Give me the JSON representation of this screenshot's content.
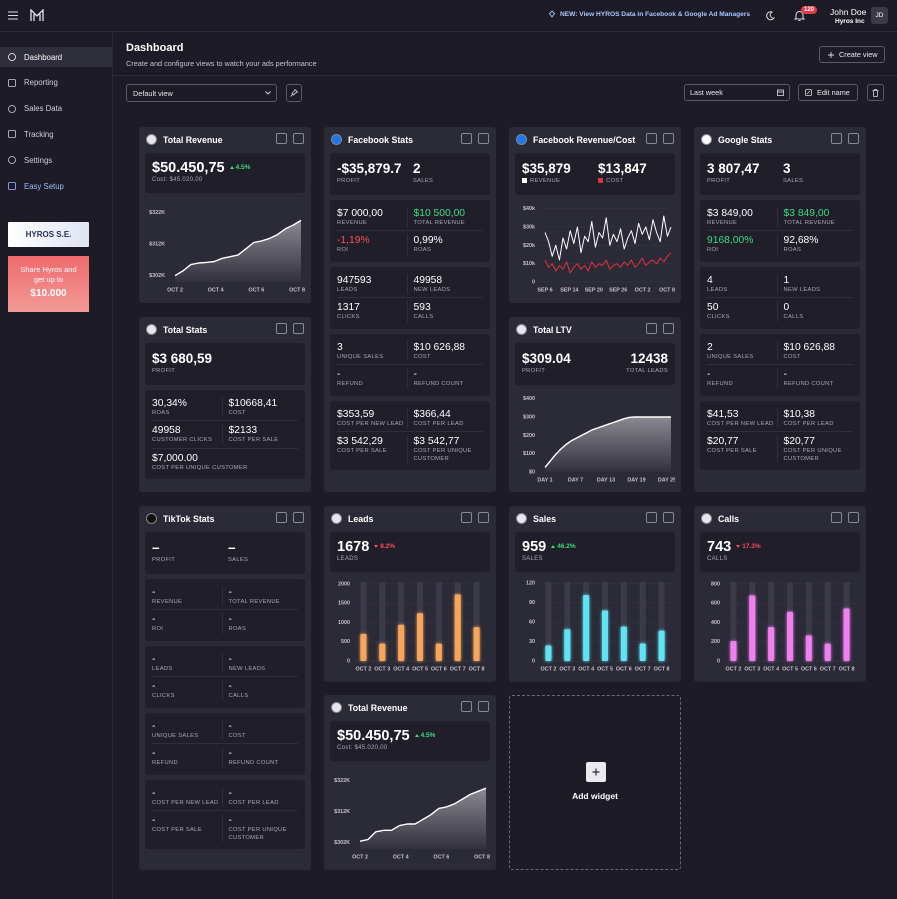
{
  "topbar": {
    "announcement": "NEW: View HYROS Data in Facebook & Google Ad Managers",
    "notifications": 120,
    "user_name": "John Doe",
    "company": "Hyros Inc",
    "initials": "JD"
  },
  "sidebar": {
    "items": [
      "Dashboard",
      "Reporting",
      "Sales Data",
      "Tracking",
      "Settings",
      "Easy Setup"
    ],
    "active": 0,
    "highlighted": 5,
    "highlight_color": "#9bbcff",
    "promo_title": "HYROS S.E.",
    "referral_text": "Share Hyros and get up to",
    "referral_amount": "$10.000"
  },
  "header": {
    "title": "Dashboard",
    "subtitle": "Create and configure views to watch your ads performance",
    "create_button": "Create view"
  },
  "toolbar": {
    "view": "Default view",
    "period": "Last week",
    "edit_button": "Edit name"
  },
  "widgets": [
    {
      "title": "Total Revenue",
      "summary": {
        "value": "$50.450,75",
        "change": "4.5%",
        "direction": "up",
        "note": "Cost: $45.020,00"
      },
      "chart": {
        "type": "area",
        "color": "#ffffff",
        "grid": false,
        "ylim": [
          300,
          325
        ],
        "yticks": [
          {
            "value": 322,
            "label": "$322K"
          },
          {
            "value": 312,
            "label": "$312K"
          },
          {
            "value": 302,
            "label": "$302K"
          }
        ],
        "xticks": [
          "OCT 2",
          "OCT 4",
          "OCT 6",
          "OCT 8"
        ],
        "series": [
          {
            "color": "#ffffff",
            "values": [
              302,
              303.5,
              305.5,
              306,
              306.2,
              306.5,
              307.5,
              308,
              308.5,
              310.5,
              312.5,
              313,
              313.8,
              315,
              316.8,
              318,
              319.5
            ]
          }
        ]
      }
    },
    {
      "title": "Facebook Stats",
      "blocks": [
        [
          [
            {
              "value": "-$35,879.7",
              "label": "PROFIT"
            },
            {
              "value": "2",
              "label": "SALES"
            }
          ]
        ],
        [
          [
            {
              "value": "$7 000,00",
              "label": "REVENUE"
            },
            {
              "value": "$10 500,00",
              "label": "TOTAL REVENUE",
              "color": "#3ddc84"
            }
          ],
          [
            {
              "value": "-1,19%",
              "label": "ROI",
              "color": "#ff4d5a"
            },
            {
              "value": "0,99%",
              "label": "ROAS"
            }
          ]
        ],
        [
          [
            {
              "value": "947593",
              "label": "LEADS"
            },
            {
              "value": "49958",
              "label": "NEW LEADS"
            }
          ],
          [
            {
              "value": "1317",
              "label": "CLICKS"
            },
            {
              "value": "593",
              "label": "CALLS"
            }
          ]
        ],
        [
          [
            {
              "value": "3",
              "label": "UNIQUE SALES"
            },
            {
              "value": "$10 626,88",
              "label": "COST"
            }
          ],
          [
            {
              "value": "-",
              "label": "REFUND"
            },
            {
              "value": "-",
              "label": "REFUND COUNT"
            }
          ]
        ],
        [
          [
            {
              "value": "$353,59",
              "label": "COST PER NEW LEAD"
            },
            {
              "value": "$366,44",
              "label": "COST PER LEAD"
            }
          ],
          [
            {
              "value": "$3 542,29",
              "label": "COST PER SALE"
            },
            {
              "value": "$3 542,77",
              "label": "COST PER UNIQUE CUSTOMER"
            }
          ]
        ]
      ]
    },
    {
      "title": "Facebook Revenue/Cost",
      "blocks": [
        [
          [
            {
              "value": "$35,879",
              "label": "REVENUE",
              "swatch": "#ffffff"
            },
            {
              "value": "$13,847",
              "label": "COST",
              "swatch": "#e0323c"
            }
          ]
        ]
      ],
      "chart": {
        "type": "line",
        "grid": true,
        "ylim": [
          0,
          42
        ],
        "yticks": [
          {
            "value": 40,
            "label": "$40k"
          },
          {
            "value": 30,
            "label": "$30k"
          },
          {
            "value": 20,
            "label": "$20k"
          },
          {
            "value": 10,
            "label": "$10k"
          },
          0
        ],
        "xticks": [
          "SEP 6",
          "SEP 14",
          "SEP 20",
          "SEP 26",
          "OCT 2",
          "OCT 8"
        ],
        "series": [
          {
            "color": "#ffffff",
            "values": [
              27,
              22,
              14,
              20,
              12,
              24,
              18,
              28,
              21,
              30,
              16,
              25,
              22,
              33,
              19,
              27,
              24,
              35,
              20,
              26,
              22,
              29,
              18,
              24,
              28,
              21,
              32,
              26,
              30,
              23,
              34,
              27,
              22,
              36,
              25,
              30
            ]
          },
          {
            "color": "#e0323c",
            "values": [
              12,
              8,
              10,
              6,
              9,
              7,
              11,
              5,
              8,
              10,
              7,
              9,
              6,
              11,
              8,
              10,
              9,
              12,
              7,
              9,
              10,
              8,
              11,
              9,
              12,
              8,
              10,
              13,
              9,
              11,
              12,
              10,
              13,
              11,
              14,
              16
            ]
          }
        ]
      }
    },
    {
      "title": "Google Stats",
      "blocks": [
        [
          [
            {
              "value": "3 807,47",
              "label": "PROFIT"
            },
            {
              "value": "3",
              "label": "SALES"
            }
          ]
        ],
        [
          [
            {
              "value": "$3 849,00",
              "label": "REVENUE"
            },
            {
              "value": "$3 849,00",
              "label": "TOTAL REVENUE",
              "color": "#3ddc84"
            }
          ],
          [
            {
              "value": "9168,00%",
              "label": "ROI",
              "color": "#3ddc84"
            },
            {
              "value": "92,68%",
              "label": "ROAS"
            }
          ]
        ],
        [
          [
            {
              "value": "4",
              "label": "LEADS"
            },
            {
              "value": "1",
              "label": "NEW LEADS"
            }
          ],
          [
            {
              "value": "50",
              "label": "CLICKS"
            },
            {
              "value": "0",
              "label": "CALLS"
            }
          ]
        ],
        [
          [
            {
              "value": "2",
              "label": "UNIQUE SALES"
            },
            {
              "value": "$10 626,88",
              "label": "COST"
            }
          ],
          [
            {
              "value": "-",
              "label": "REFUND"
            },
            {
              "value": "-",
              "label": "REFUND COUNT"
            }
          ]
        ],
        [
          [
            {
              "value": "$41,53",
              "label": "COST PER NEW LEAD"
            },
            {
              "value": "$10,38",
              "label": "COST PER LEAD"
            }
          ],
          [
            {
              "value": "$20,77",
              "label": "COST PER SALE"
            },
            {
              "value": "$20,77",
              "label": "COST PER UNIQUE CUSTOMER"
            }
          ]
        ]
      ]
    },
    {
      "title": "Total Stats",
      "blocks": [
        [
          [
            {
              "value": "$3 680,59",
              "label": "PROFIT"
            }
          ]
        ],
        [
          [
            {
              "value": "30,34%",
              "label": "ROAS"
            },
            {
              "value": "$10668,41",
              "label": "COST"
            }
          ],
          [
            {
              "value": "49958",
              "label": "CUSTOMER CLICKS"
            },
            {
              "value": "$2133",
              "label": "COST PER SALE"
            }
          ],
          [
            {
              "value": "$7,000.00",
              "label": "COST PER UNIQUE CUSTOMER"
            }
          ]
        ]
      ]
    },
    {
      "title": "Total LTV",
      "blocks": [
        [
          [
            {
              "value": "$309.04",
              "label": "PROFIT"
            },
            {
              "value": "12438",
              "label": "TOTAL LEADS",
              "align": "right"
            }
          ]
        ]
      ],
      "chart": {
        "type": "area",
        "color": "#ffffff",
        "grid": false,
        "ylim": [
          0,
          420
        ],
        "yticks": [
          {
            "value": 400,
            "label": "$400"
          },
          {
            "value": 300,
            "label": "$300"
          },
          {
            "value": 200,
            "label": "$200"
          },
          {
            "value": 100,
            "label": "$100"
          },
          {
            "value": 0,
            "label": "$0"
          }
        ],
        "xticks": [
          "DAY 1",
          "DAY 7",
          "DAY 13",
          "DAY 19",
          "DAY 25"
        ],
        "series": [
          {
            "color": "#ffffff",
            "values": [
              25,
              60,
              95,
              125,
              150,
              170,
              185,
              200,
              215,
              230,
              240,
              250,
              260,
              270,
              280,
              290,
              298,
              300,
              300,
              300,
              300,
              300,
              300,
              300,
              300
            ]
          }
        ]
      }
    },
    {
      "title": "TikTok Stats",
      "blocks": [
        [
          [
            {
              "value": "–",
              "label": "PROFIT"
            },
            {
              "value": "–",
              "label": "SALES"
            }
          ]
        ],
        [
          [
            {
              "value": "-",
              "label": "REVENUE"
            },
            {
              "value": "-",
              "label": "TOTAL REVENUE"
            }
          ],
          [
            {
              "value": "-",
              "label": "ROI"
            },
            {
              "value": "-",
              "label": "ROAS"
            }
          ]
        ],
        [
          [
            {
              "value": "-",
              "label": "LEADS"
            },
            {
              "value": "-",
              "label": "NEW LEADS"
            }
          ],
          [
            {
              "value": "-",
              "label": "CLICKS"
            },
            {
              "value": "-",
              "label": "CALLS"
            }
          ]
        ],
        [
          [
            {
              "value": "-",
              "label": "UNIQUE SALES"
            },
            {
              "value": "-",
              "label": "COST"
            }
          ],
          [
            {
              "value": "-",
              "label": "REFUND"
            },
            {
              "value": "-",
              "label": "REFUND COUNT"
            }
          ]
        ],
        [
          [
            {
              "value": "-",
              "label": "COST PER NEW LEAD"
            },
            {
              "value": "-",
              "label": "COST PER LEAD"
            }
          ],
          [
            {
              "value": "-",
              "label": "COST PER SALE"
            },
            {
              "value": "-",
              "label": "COST PER UNIQUE CUSTOMER"
            }
          ]
        ]
      ]
    },
    {
      "title": "Leads",
      "summary": {
        "value": "1678",
        "change": "8.2%",
        "direction": "down",
        "note": "LEADS"
      },
      "chart": {
        "type": "bar",
        "color": "#f6a55a",
        "grid": true,
        "ylim": [
          0,
          2050
        ],
        "yticks": [
          2000,
          1500,
          1000,
          500,
          0
        ],
        "xticks": [
          "OCT 2",
          "OCT 3",
          "OCT 4",
          "OCT 5",
          "OCT 6",
          "OCT 7",
          "OCT 8"
        ],
        "series": [
          {
            "color": "#f6a55a",
            "values": [
              700,
              450,
              940,
              1240,
              450,
              1730,
              880
            ]
          }
        ]
      }
    },
    {
      "title": "Sales",
      "summary": {
        "value": "959",
        "change": "46.2%",
        "direction": "up",
        "note": "SALES"
      },
      "chart": {
        "type": "bar",
        "color": "#5ee3f5",
        "grid": true,
        "ylim": [
          0,
          122
        ],
        "yticks": [
          120,
          90,
          60,
          30,
          0
        ],
        "xticks": [
          "OCT 2",
          "OCT 3",
          "OCT 4",
          "OCT 5",
          "OCT 6",
          "OCT 7",
          "OCT 8"
        ],
        "series": [
          {
            "color": "#5ee3f5",
            "values": [
              24,
              49,
              102,
              78,
              53,
              27,
              47
            ]
          }
        ]
      }
    },
    {
      "title": "Calls",
      "summary": {
        "value": "743",
        "change": "17.3%",
        "direction": "down",
        "note": "CALLS"
      },
      "chart": {
        "type": "bar",
        "color": "#f07ff0",
        "grid": true,
        "ylim": [
          0,
          820
        ],
        "yticks": [
          800,
          600,
          400,
          200,
          0
        ],
        "xticks": [
          "OCT 2",
          "OCT 3",
          "OCT 4",
          "OCT 5",
          "OCT 6",
          "OCT 7",
          "OCT 8"
        ],
        "series": [
          {
            "color": "#f07ff0",
            "values": [
              206,
              680,
              352,
              510,
              265,
              180,
              545
            ]
          }
        ]
      }
    },
    {
      "title": "Total Revenue",
      "summary": {
        "value": "$50.450,75",
        "change": "4.5%",
        "direction": "up",
        "note": "Cost: $45.020,00"
      },
      "chart": {
        "type": "area",
        "color": "#ffffff",
        "grid": false,
        "ylim": [
          300,
          325
        ],
        "yticks": [
          {
            "value": 322,
            "label": "$322K"
          },
          {
            "value": 312,
            "label": "$312K"
          },
          {
            "value": 302,
            "label": "$302K"
          }
        ],
        "xticks": [
          "OCT 2",
          "OCT 4",
          "OCT 6",
          "OCT 8"
        ],
        "series": [
          {
            "color": "#ffffff",
            "values": [
              302.5,
              303,
              305.5,
              306,
              306,
              307.5,
              308,
              308,
              309.5,
              311,
              313,
              313.5,
              314.5,
              316,
              317.5,
              318.5,
              319.5
            ]
          }
        ]
      }
    }
  ],
  "add_widget": "Add widget"
}
